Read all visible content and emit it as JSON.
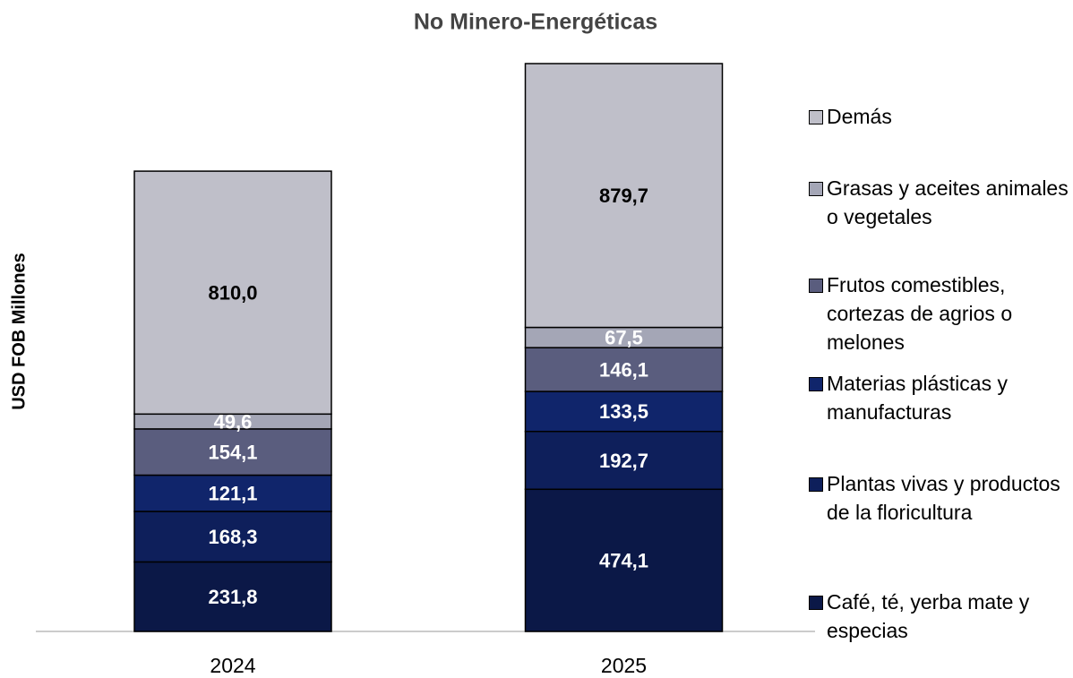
{
  "chart_data": {
    "type": "stacked_bar",
    "title": "No Minero-Energéticas",
    "y_label": "USD FOB Millones",
    "categories": [
      "2024",
      "2025"
    ],
    "series": [
      {
        "name": "Café, té, yerba mate y especias",
        "color": "#0b1847",
        "values": [
          231.8,
          474.1
        ],
        "value_labels": [
          "231,8",
          "474,1"
        ]
      },
      {
        "name": "Plantas vivas y productos de la floricultura",
        "color": "#0e1f5b",
        "values": [
          168.3,
          192.7
        ],
        "value_labels": [
          "168,3",
          "192,7"
        ]
      },
      {
        "name": "Materias plásticas y manufacturas",
        "color": "#10256b",
        "values": [
          121.1,
          133.5
        ],
        "value_labels": [
          "121,1",
          "133,5"
        ]
      },
      {
        "name": "Frutos comestibles, cortezas de agrios o melones",
        "color": "#5a5d7e",
        "values": [
          154.1,
          146.1
        ],
        "value_labels": [
          "154,1",
          "146,1"
        ]
      },
      {
        "name": "Grasas y aceites animales o vegetales",
        "color": "#a4a6b6",
        "values": [
          49.6,
          67.5
        ],
        "value_labels": [
          "49,6",
          "67,5"
        ]
      },
      {
        "name": "Demás",
        "color": "#bfbfc9",
        "values": [
          810.0,
          879.7
        ],
        "value_labels": [
          "810,0",
          "879,7"
        ]
      }
    ]
  }
}
